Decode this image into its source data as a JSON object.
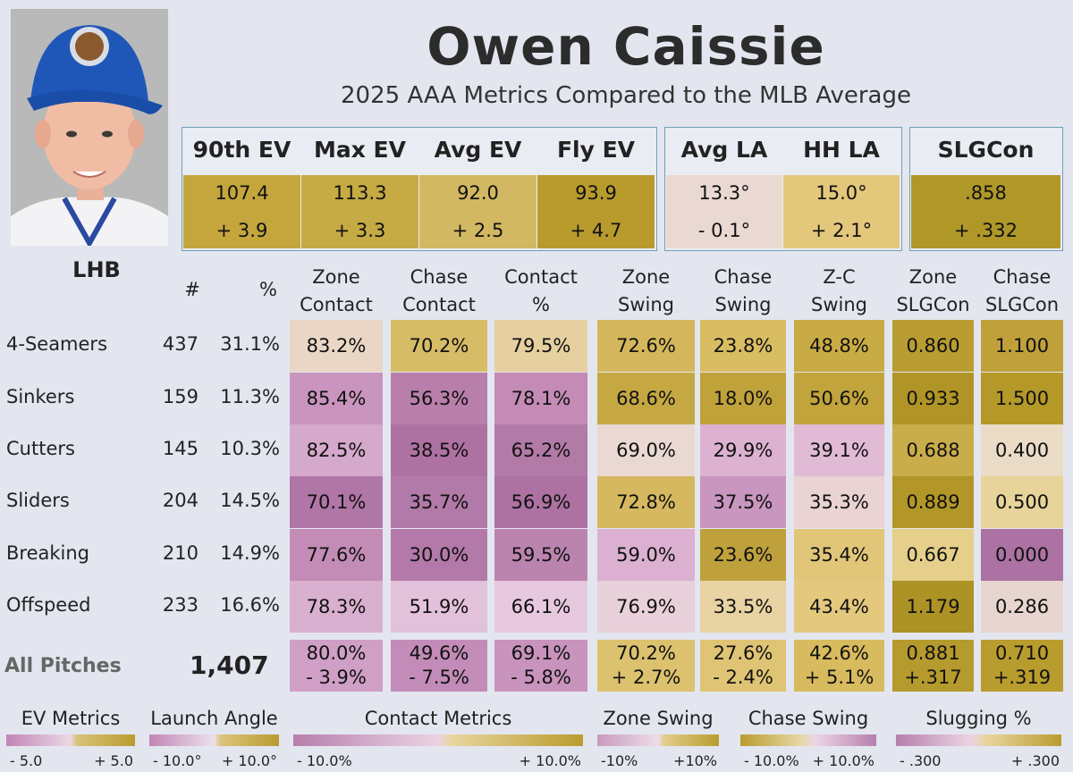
{
  "header": {
    "player_name": "Owen Caissie",
    "subtitle": "2025 AAA Metrics Compared to the MLB Average"
  },
  "metrics": [
    {
      "label": "90th EV",
      "value": "107.4",
      "diff": "+ 3.9",
      "color": "#c4a63c"
    },
    {
      "label": "Max EV",
      "value": "113.3",
      "diff": "+ 3.3",
      "color": "#c6aa43"
    },
    {
      "label": "Avg EV",
      "value": "92.0",
      "diff": "+ 2.5",
      "color": "#d2b862"
    },
    {
      "label": "Fly EV",
      "value": "93.9",
      "diff": "+ 4.7",
      "color": "#b89b2c"
    },
    {
      "label": "Avg LA",
      "value": "13.3°",
      "diff": "- 0.1°",
      "color": "#ead9d2"
    },
    {
      "label": "HH LA",
      "value": "15.0°",
      "diff": "+ 2.1°",
      "color": "#e3c77b"
    },
    {
      "label": "SLGCon",
      "value": ".858",
      "diff": "+ .332",
      "color": "#b09828"
    }
  ],
  "table": {
    "handedness": "LHB",
    "count_header": "#",
    "pct_header": "%",
    "columns": [
      {
        "l1": "Zone",
        "l2": "Contact"
      },
      {
        "l1": "Chase",
        "l2": "Contact"
      },
      {
        "l1": "Contact",
        "l2": "%"
      },
      {
        "l1": "Zone",
        "l2": "Swing"
      },
      {
        "l1": "Chase",
        "l2": "Swing"
      },
      {
        "l1": "Z-C",
        "l2": "Swing"
      },
      {
        "l1": "Zone",
        "l2": "SLGCon"
      },
      {
        "l1": "Chase",
        "l2": "SLGCon"
      }
    ],
    "rows": [
      {
        "pitch": "4-Seamers",
        "count": "437",
        "pct": "31.1%",
        "cells": [
          {
            "v": "83.2%",
            "c": "#e9d6c5"
          },
          {
            "v": "70.2%",
            "c": "#d6bc66"
          },
          {
            "v": "79.5%",
            "c": "#e6d09f"
          },
          {
            "v": "72.6%",
            "c": "#d4b75c"
          },
          {
            "v": "23.8%",
            "c": "#d8bd63"
          },
          {
            "v": "48.8%",
            "c": "#c9ab45"
          },
          {
            "v": "0.860",
            "c": "#b99d32"
          },
          {
            "v": "1.100",
            "c": "#bfa03a"
          }
        ]
      },
      {
        "pitch": "Sinkers",
        "count": "159",
        "pct": "11.3%",
        "cells": [
          {
            "v": "85.4%",
            "c": "#c994bd"
          },
          {
            "v": "56.3%",
            "c": "#b97fab"
          },
          {
            "v": "78.1%",
            "c": "#c38bb6"
          },
          {
            "v": "68.6%",
            "c": "#c6a843"
          },
          {
            "v": "18.0%",
            "c": "#c0a23a"
          },
          {
            "v": "50.6%",
            "c": "#c2a43c"
          },
          {
            "v": "0.933",
            "c": "#b09526"
          },
          {
            "v": "1.500",
            "c": "#b49828"
          }
        ]
      },
      {
        "pitch": "Cutters",
        "count": "145",
        "pct": "10.3%",
        "cells": [
          {
            "v": "82.5%",
            "c": "#d5a9cb"
          },
          {
            "v": "38.5%",
            "c": "#ae72a2"
          },
          {
            "v": "65.2%",
            "c": "#b27aa7"
          },
          {
            "v": "69.0%",
            "c": "#ead8d2"
          },
          {
            "v": "29.9%",
            "c": "#dcb2d0"
          },
          {
            "v": "39.1%",
            "c": "#e1bad6"
          },
          {
            "v": "0.688",
            "c": "#c9ad4a"
          },
          {
            "v": "0.400",
            "c": "#ebdcc8"
          }
        ]
      },
      {
        "pitch": "Sliders",
        "count": "204",
        "pct": "14.5%",
        "cells": [
          {
            "v": "70.1%",
            "c": "#b076a6"
          },
          {
            "v": "35.7%",
            "c": "#b27aa8"
          },
          {
            "v": "56.9%",
            "c": "#ad72a1"
          },
          {
            "v": "72.8%",
            "c": "#d5b860"
          },
          {
            "v": "37.5%",
            "c": "#c996c0"
          },
          {
            "v": "35.3%",
            "c": "#e9d3d3"
          },
          {
            "v": "0.889",
            "c": "#b29728"
          },
          {
            "v": "0.500",
            "c": "#e7d49a"
          }
        ]
      },
      {
        "pitch": "Breaking",
        "count": "210",
        "pct": "14.9%",
        "cells": [
          {
            "v": "77.6%",
            "c": "#c38cb7"
          },
          {
            "v": "30.0%",
            "c": "#b379a8"
          },
          {
            "v": "59.5%",
            "c": "#bb84af"
          },
          {
            "v": "59.0%",
            "c": "#dbb0d0"
          },
          {
            "v": "23.6%",
            "c": "#bea13c"
          },
          {
            "v": "35.4%",
            "c": "#e1c67a"
          },
          {
            "v": "0.667",
            "c": "#e5cf8b"
          },
          {
            "v": "0.000",
            "c": "#ac72a3"
          }
        ]
      },
      {
        "pitch": "Offspeed",
        "count": "233",
        "pct": "16.6%",
        "cells": [
          {
            "v": "78.3%",
            "c": "#d9b0cf"
          },
          {
            "v": "51.9%",
            "c": "#e2c1da"
          },
          {
            "v": "66.1%",
            "c": "#e6c9de"
          },
          {
            "v": "76.9%",
            "c": "#e8d1da"
          },
          {
            "v": "33.5%",
            "c": "#e7d3a3"
          },
          {
            "v": "43.4%",
            "c": "#e3c87e"
          },
          {
            "v": "1.179",
            "c": "#ad9226"
          },
          {
            "v": "0.286",
            "c": "#e7d6cf"
          }
        ]
      }
    ],
    "all": {
      "label": "All Pitches",
      "count": "1,407",
      "cells": [
        {
          "v": "80.0%",
          "d": "- 3.9%",
          "c": "#cf9fc6"
        },
        {
          "v": "49.6%",
          "d": "- 7.5%",
          "c": "#c38cb8"
        },
        {
          "v": "69.1%",
          "d": "- 5.8%",
          "c": "#c893bd"
        },
        {
          "v": "70.2%",
          "d": "+ 2.7%",
          "c": "#dcc26e"
        },
        {
          "v": "27.6%",
          "d": "- 2.4%",
          "c": "#dfc475"
        },
        {
          "v": "42.6%",
          "d": "+ 5.1%",
          "c": "#d8bb5e"
        },
        {
          "v": "0.881",
          "d": "+.317",
          "c": "#b59a2d"
        },
        {
          "v": "0.710",
          "d": "+.319",
          "c": "#b89c2e"
        }
      ]
    }
  },
  "legend": [
    {
      "title": "EV Metrics",
      "min": "- 5.0",
      "max": "+ 5.0"
    },
    {
      "title": "Launch Angle",
      "min": "- 10.0°",
      "max": "+ 10.0°"
    },
    {
      "title": "Contact Metrics",
      "min": "- 10.0%",
      "max": "+ 10.0%"
    },
    {
      "title": "Zone Swing",
      "min": "-10%",
      "max": "+10%"
    },
    {
      "title": "Chase Swing",
      "min": "- 10.0%",
      "max": "+ 10.0%"
    },
    {
      "title": "Slugging %",
      "min": "- .300",
      "max": "+ .300"
    }
  ],
  "colors": {
    "gold": "#b99c2e",
    "purple": "#b77fae",
    "background": "#e3e6ef",
    "border": "#6f9fb6"
  }
}
